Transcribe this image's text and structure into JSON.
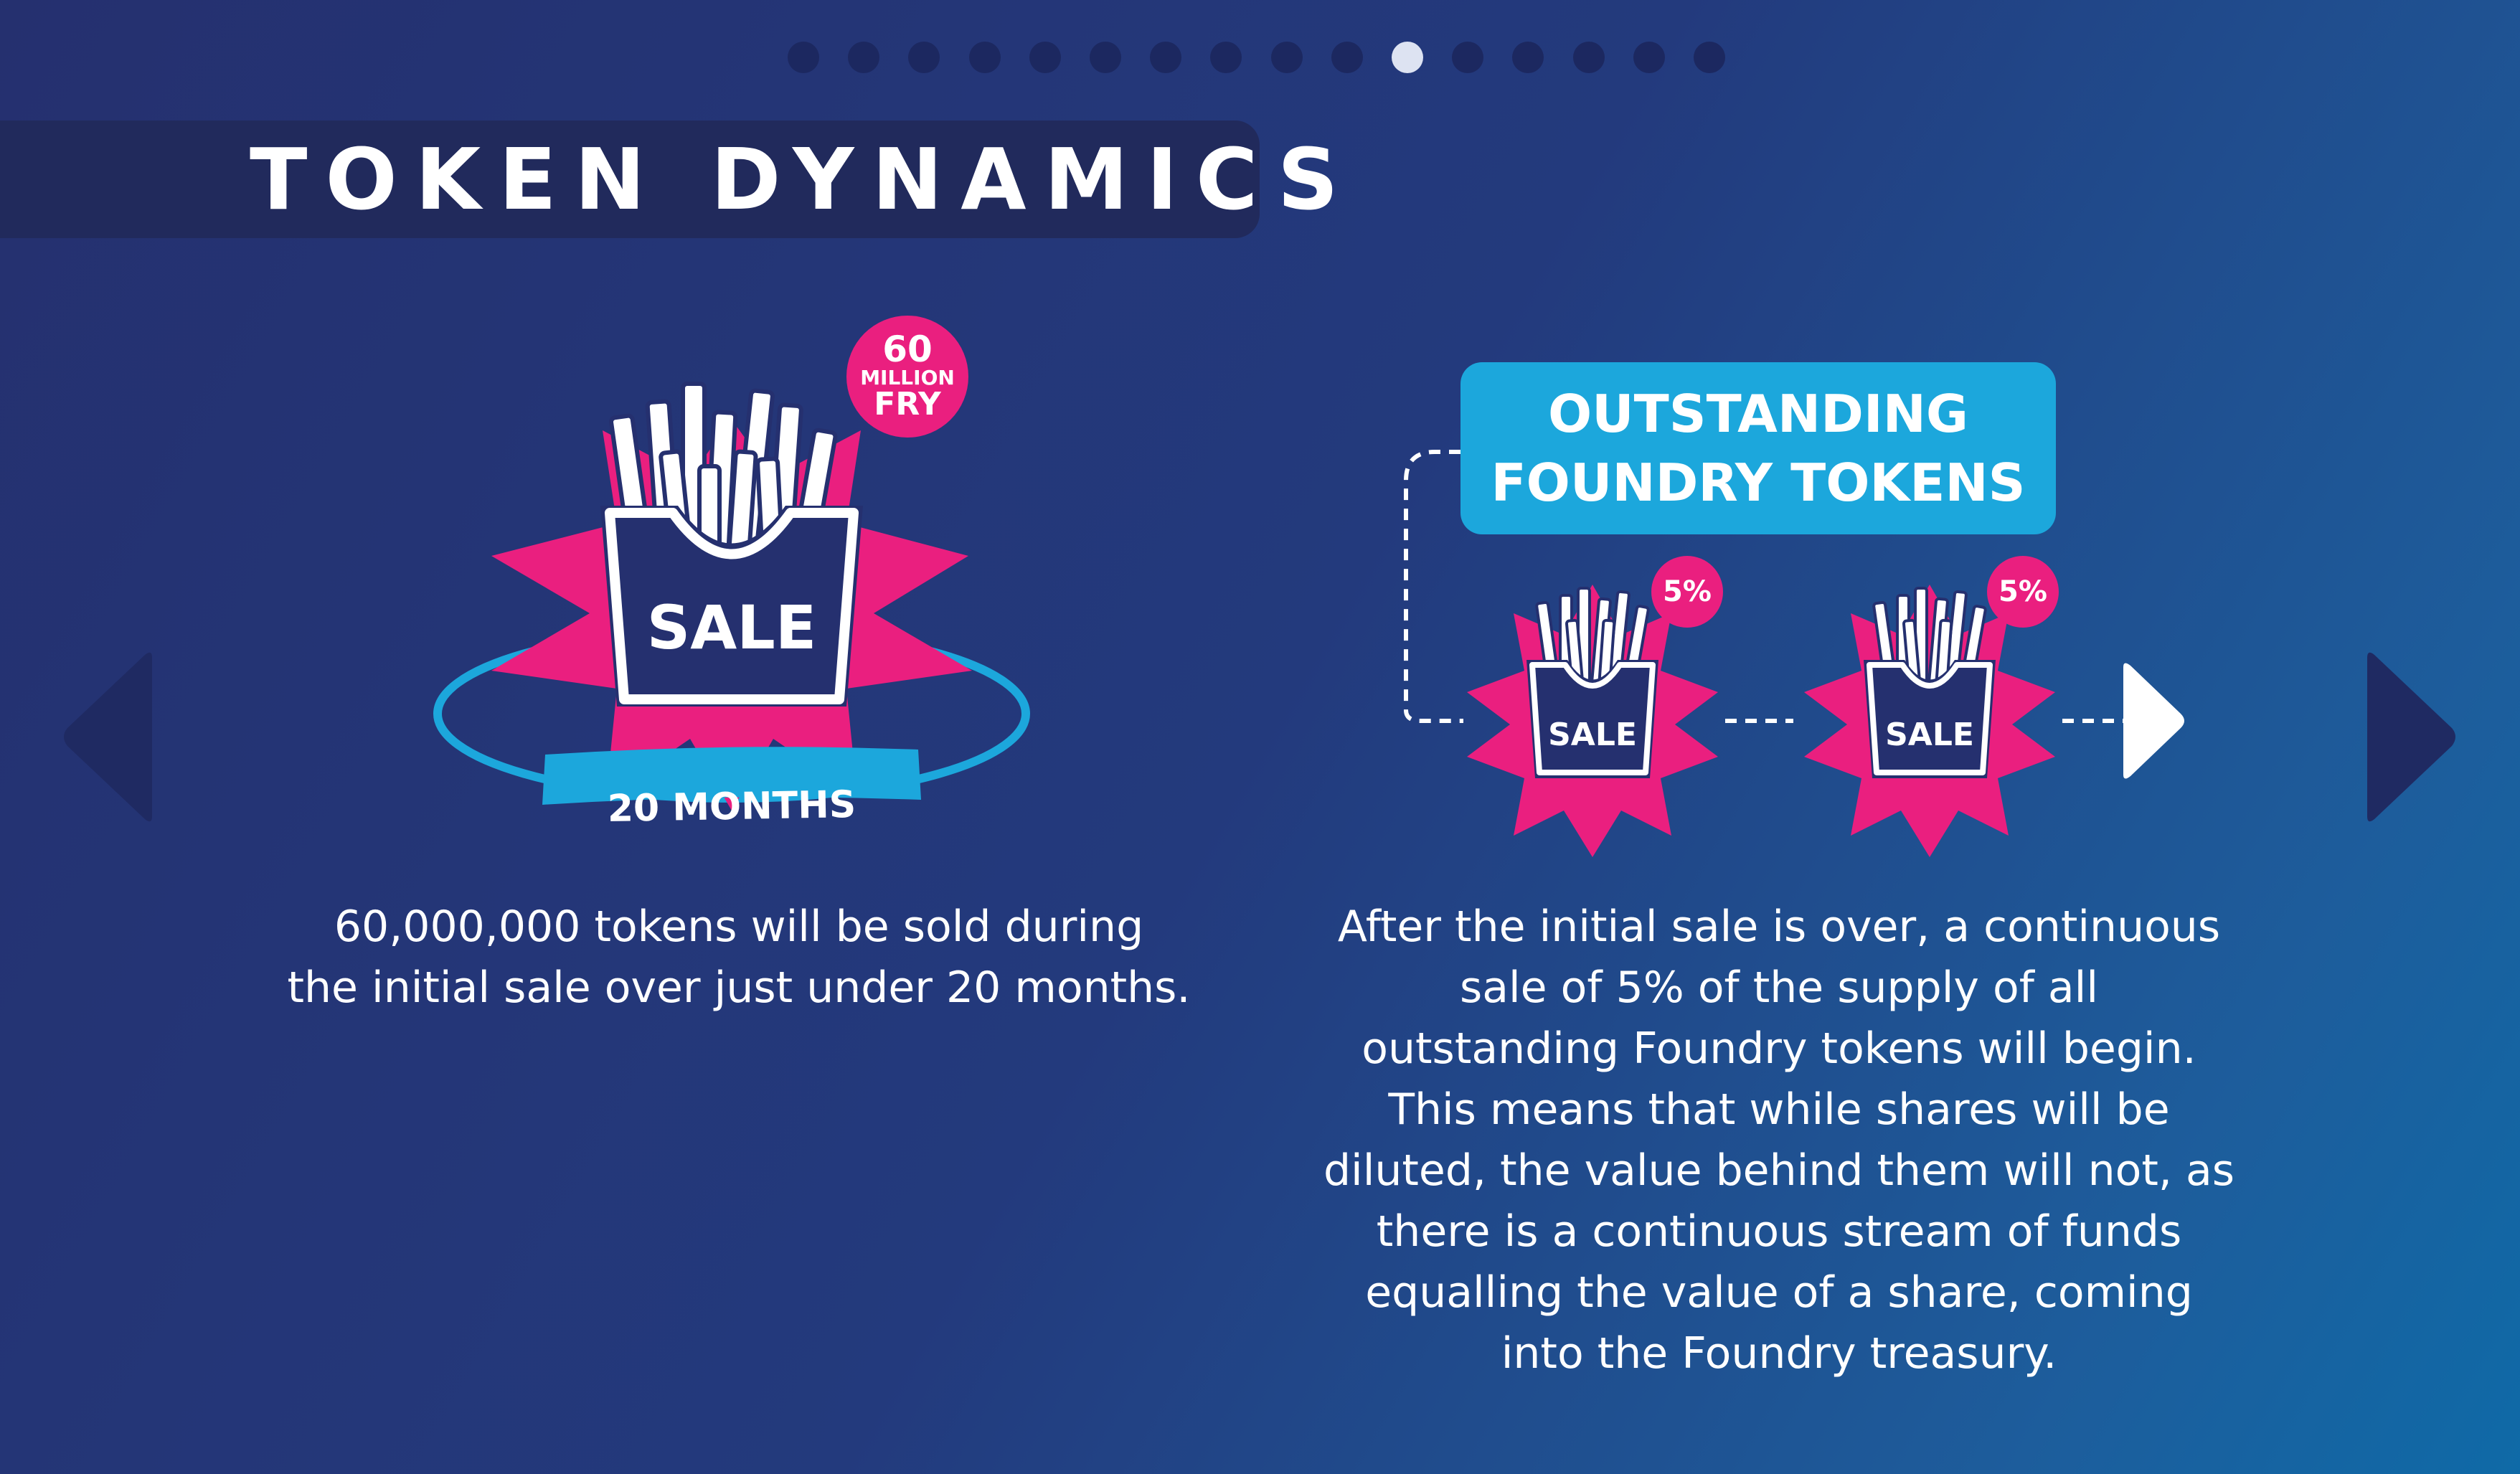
{
  "pagination": {
    "total": 16,
    "active_index": 10
  },
  "title": "TOKEN DYNAMICS",
  "left_panel": {
    "badge": {
      "line1": "60",
      "line2": "MILLION",
      "line3": "FRY"
    },
    "sale_label": "SALE",
    "months_label": "20 MONTHS",
    "description": "60,000,000 tokens will be sold during\nthe initial sale over just under 20 months."
  },
  "right_panel": {
    "box_label": "OUTSTANDING\nFOUNDRY TOKENS",
    "items": [
      {
        "sale_label": "SALE",
        "percent": "5%"
      },
      {
        "sale_label": "SALE",
        "percent": "5%"
      }
    ],
    "description": "After the initial sale is over, a continuous\nsale of 5% of the supply of all\noutstanding Foundry tokens will begin.\nThis means that while shares will be\ndiluted, the value behind them will not, as\nthere is a continuous stream of funds\nequalling the value of a share, coming\ninto the Foundry treasury."
  },
  "colors": {
    "background": "#243476",
    "title_bar": "#212a5c",
    "accent_pink": "#ea1f7f",
    "accent_blue": "#1ca7dc",
    "dot_inactive": "#1c2860",
    "dot_active": "#dde3f2",
    "nav_arrow": "#1f2a62"
  },
  "icons": {
    "nav_previous": "triangle-left-icon",
    "nav_next": "triangle-right-icon",
    "fries": "fries-icon",
    "flow_arrow": "arrow-right-icon"
  }
}
